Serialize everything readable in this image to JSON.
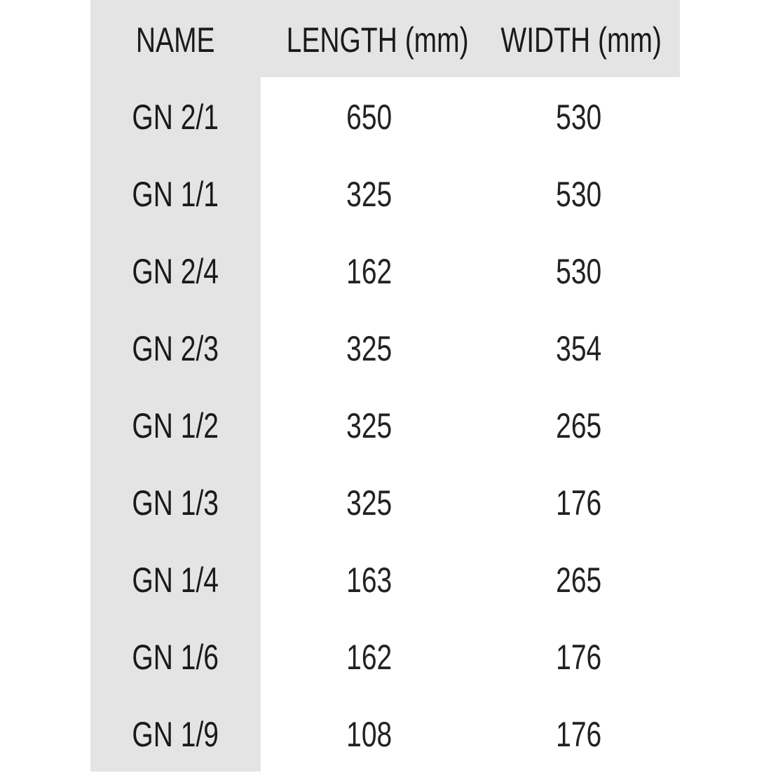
{
  "table": {
    "headers": [
      "NAME",
      "LENGTH (mm)",
      "WIDTH (mm)"
    ],
    "rows": [
      [
        "GN 2/1",
        "650",
        "530"
      ],
      [
        "GN 1/1",
        "325",
        "530"
      ],
      [
        "GN 2/4",
        "162",
        "530"
      ],
      [
        "GN 2/3",
        "325",
        "354"
      ],
      [
        "GN 1/2",
        "325",
        "265"
      ],
      [
        "GN 1/3",
        "325",
        "176"
      ],
      [
        "GN 1/4",
        "163",
        "265"
      ],
      [
        "GN 1/6",
        "162",
        "176"
      ],
      [
        "GN 1/9",
        "108",
        "176"
      ]
    ]
  },
  "colors": {
    "header_background": "#e5e4e4",
    "text": "#1a1a1a"
  }
}
